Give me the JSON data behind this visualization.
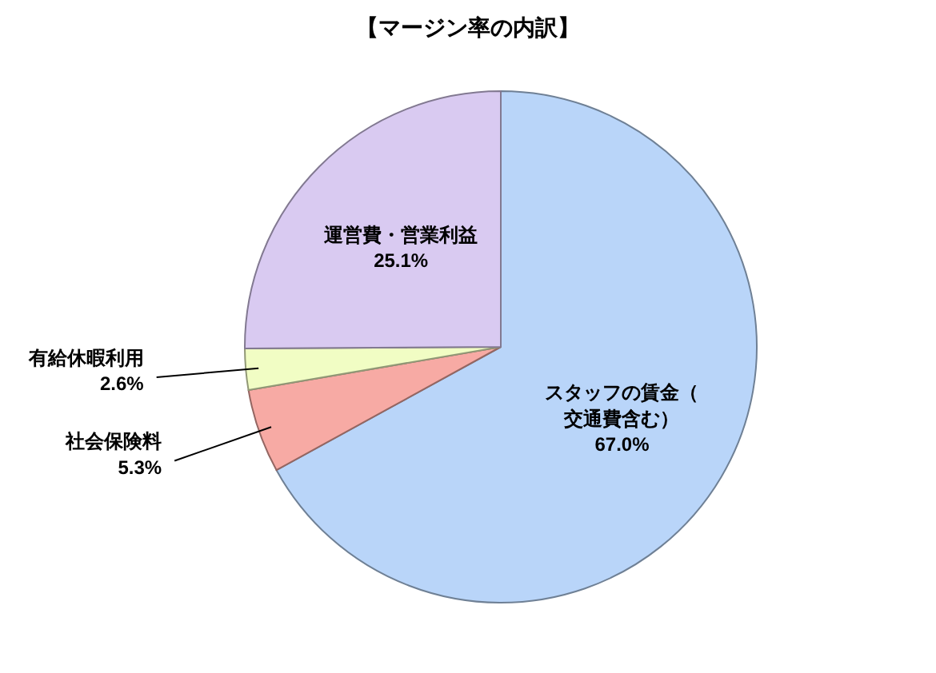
{
  "chart_data": {
    "type": "pie",
    "title": "【マージン率の内訳】",
    "categories": [
      "スタッフの賃金（交通費含む）",
      "社会保険料",
      "有給休暇利用",
      "運営費・営業利益"
    ],
    "values": [
      67.0,
      5.3,
      2.6,
      25.1
    ],
    "value_labels": [
      "67.0%",
      "5.3%",
      "2.6%",
      "25.1%"
    ],
    "colors": [
      "#b9d5f9",
      "#f7aaa4",
      "#f1fdc4",
      "#d9caf1"
    ]
  }
}
